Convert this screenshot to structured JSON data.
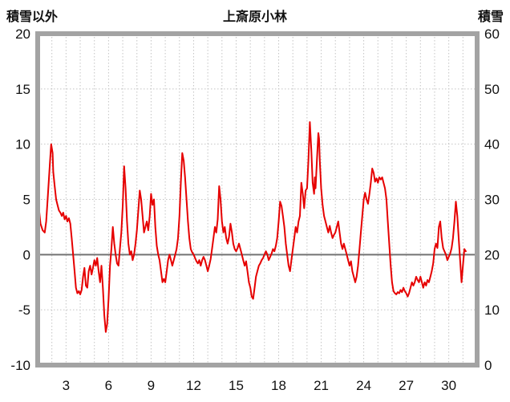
{
  "header": {
    "left_axis_title": "積雪以外",
    "title": "上斎原小林",
    "right_axis_title": "積雪"
  },
  "chart_data": {
    "type": "line",
    "title": "上斎原小林",
    "left_axis": {
      "title": "積雪以外",
      "min": -10,
      "max": 20,
      "ticks": [
        20,
        15,
        10,
        5,
        0,
        -5,
        -10
      ]
    },
    "right_axis": {
      "title": "積雪",
      "min": 0,
      "max": 60,
      "ticks": [
        60,
        50,
        40,
        30,
        20,
        10,
        0
      ]
    },
    "x_axis": {
      "min": 1,
      "max": 32,
      "tick_labels": [
        3,
        6,
        9,
        12,
        15,
        18,
        21,
        24,
        27,
        30
      ]
    },
    "grid": {
      "vertical_every_day": true,
      "horizontal_at": [
        15,
        10,
        5,
        -5
      ],
      "zero_line": 0
    },
    "colors": {
      "line": "#e60000",
      "grid": "#c4c4c4",
      "zero_line": "#737373",
      "frame": "#a3a3a3",
      "text": "#111111",
      "background": "#ffffff"
    },
    "series": [
      {
        "name": "積雪以外",
        "axis": "left",
        "color": "#e60000",
        "points": [
          [
            1.0,
            3.2
          ],
          [
            1.1,
            4.0
          ],
          [
            1.2,
            2.8
          ],
          [
            1.35,
            2.2
          ],
          [
            1.5,
            2.0
          ],
          [
            1.6,
            3.0
          ],
          [
            1.7,
            5.0
          ],
          [
            1.85,
            8.0
          ],
          [
            1.95,
            10.0
          ],
          [
            2.05,
            9.2
          ],
          [
            2.1,
            7.5
          ],
          [
            2.2,
            6.2
          ],
          [
            2.3,
            5.0
          ],
          [
            2.4,
            4.5
          ],
          [
            2.5,
            4.0
          ],
          [
            2.6,
            3.8
          ],
          [
            2.7,
            3.5
          ],
          [
            2.8,
            3.8
          ],
          [
            2.9,
            3.2
          ],
          [
            3.0,
            3.5
          ],
          [
            3.1,
            3.0
          ],
          [
            3.2,
            3.3
          ],
          [
            3.3,
            2.8
          ],
          [
            3.4,
            1.5
          ],
          [
            3.5,
            0.0
          ],
          [
            3.6,
            -1.5
          ],
          [
            3.7,
            -3.0
          ],
          [
            3.8,
            -3.5
          ],
          [
            3.9,
            -3.3
          ],
          [
            4.0,
            -3.6
          ],
          [
            4.1,
            -3.2
          ],
          [
            4.2,
            -2.0
          ],
          [
            4.3,
            -1.2
          ],
          [
            4.4,
            -2.8
          ],
          [
            4.5,
            -3.0
          ],
          [
            4.6,
            -1.5
          ],
          [
            4.7,
            -1.0
          ],
          [
            4.8,
            -1.8
          ],
          [
            4.9,
            -1.2
          ],
          [
            5.0,
            -0.5
          ],
          [
            5.1,
            -1.0
          ],
          [
            5.2,
            -0.3
          ],
          [
            5.3,
            -1.5
          ],
          [
            5.4,
            -2.5
          ],
          [
            5.5,
            -1.0
          ],
          [
            5.6,
            -3.0
          ],
          [
            5.7,
            -5.5
          ],
          [
            5.8,
            -7.0
          ],
          [
            5.9,
            -6.3
          ],
          [
            6.0,
            -4.0
          ],
          [
            6.1,
            -1.0
          ],
          [
            6.2,
            0.5
          ],
          [
            6.3,
            2.5
          ],
          [
            6.4,
            1.0
          ],
          [
            6.5,
            0.0
          ],
          [
            6.6,
            -0.8
          ],
          [
            6.7,
            -1.0
          ],
          [
            6.8,
            0.5
          ],
          [
            6.9,
            2.0
          ],
          [
            7.0,
            4.5
          ],
          [
            7.1,
            8.0
          ],
          [
            7.2,
            6.0
          ],
          [
            7.3,
            3.0
          ],
          [
            7.4,
            1.0
          ],
          [
            7.5,
            0.0
          ],
          [
            7.6,
            0.3
          ],
          [
            7.7,
            -0.5
          ],
          [
            7.8,
            0.0
          ],
          [
            7.9,
            1.0
          ],
          [
            8.0,
            2.2
          ],
          [
            8.1,
            4.0
          ],
          [
            8.2,
            5.8
          ],
          [
            8.3,
            5.0
          ],
          [
            8.4,
            3.5
          ],
          [
            8.5,
            2.0
          ],
          [
            8.6,
            2.5
          ],
          [
            8.7,
            3.0
          ],
          [
            8.8,
            2.2
          ],
          [
            8.9,
            3.5
          ],
          [
            9.0,
            5.5
          ],
          [
            9.1,
            4.5
          ],
          [
            9.2,
            5.0
          ],
          [
            9.3,
            2.5
          ],
          [
            9.4,
            0.8
          ],
          [
            9.5,
            0.0
          ],
          [
            9.6,
            -0.5
          ],
          [
            9.7,
            -1.5
          ],
          [
            9.8,
            -2.5
          ],
          [
            9.9,
            -2.2
          ],
          [
            10.0,
            -2.5
          ],
          [
            10.1,
            -1.5
          ],
          [
            10.2,
            -0.5
          ],
          [
            10.3,
            0.0
          ],
          [
            10.4,
            -0.5
          ],
          [
            10.5,
            -1.0
          ],
          [
            10.6,
            -0.5
          ],
          [
            10.7,
            0.0
          ],
          [
            10.8,
            0.5
          ],
          [
            10.9,
            1.5
          ],
          [
            11.0,
            3.5
          ],
          [
            11.1,
            6.5
          ],
          [
            11.2,
            9.2
          ],
          [
            11.3,
            8.5
          ],
          [
            11.4,
            7.0
          ],
          [
            11.5,
            5.0
          ],
          [
            11.6,
            3.0
          ],
          [
            11.7,
            1.5
          ],
          [
            11.8,
            0.5
          ],
          [
            11.9,
            0.2
          ],
          [
            12.0,
            0.0
          ],
          [
            12.1,
            -0.3
          ],
          [
            12.2,
            -0.6
          ],
          [
            12.3,
            -0.8
          ],
          [
            12.4,
            -0.5
          ],
          [
            12.5,
            -1.0
          ],
          [
            12.6,
            -0.5
          ],
          [
            12.7,
            -0.2
          ],
          [
            12.8,
            -0.5
          ],
          [
            12.9,
            -1.0
          ],
          [
            13.0,
            -1.5
          ],
          [
            13.1,
            -1.0
          ],
          [
            13.2,
            -0.4
          ],
          [
            13.3,
            0.5
          ],
          [
            13.4,
            1.5
          ],
          [
            13.5,
            2.5
          ],
          [
            13.6,
            2.0
          ],
          [
            13.7,
            3.2
          ],
          [
            13.8,
            6.2
          ],
          [
            13.9,
            5.0
          ],
          [
            14.0,
            3.0
          ],
          [
            14.1,
            2.0
          ],
          [
            14.2,
            2.5
          ],
          [
            14.3,
            1.5
          ],
          [
            14.4,
            1.0
          ],
          [
            14.5,
            1.6
          ],
          [
            14.6,
            2.8
          ],
          [
            14.7,
            2.0
          ],
          [
            14.8,
            1.0
          ],
          [
            14.9,
            0.5
          ],
          [
            15.0,
            0.3
          ],
          [
            15.1,
            0.6
          ],
          [
            15.2,
            1.0
          ],
          [
            15.3,
            0.5
          ],
          [
            15.4,
            0.0
          ],
          [
            15.5,
            -0.5
          ],
          [
            15.6,
            -1.0
          ],
          [
            15.7,
            -0.6
          ],
          [
            15.8,
            -1.5
          ],
          [
            15.9,
            -2.5
          ],
          [
            16.0,
            -3.0
          ],
          [
            16.1,
            -3.8
          ],
          [
            16.2,
            -4.0
          ],
          [
            16.3,
            -3.0
          ],
          [
            16.4,
            -2.0
          ],
          [
            16.5,
            -1.5
          ],
          [
            16.6,
            -1.0
          ],
          [
            16.7,
            -0.8
          ],
          [
            16.8,
            -0.5
          ],
          [
            16.9,
            -0.3
          ],
          [
            17.0,
            0.0
          ],
          [
            17.1,
            0.3
          ],
          [
            17.2,
            0.0
          ],
          [
            17.3,
            -0.5
          ],
          [
            17.4,
            -0.2
          ],
          [
            17.5,
            0.1
          ],
          [
            17.6,
            0.5
          ],
          [
            17.7,
            0.3
          ],
          [
            17.8,
            0.8
          ],
          [
            17.9,
            1.5
          ],
          [
            18.0,
            3.0
          ],
          [
            18.1,
            4.8
          ],
          [
            18.2,
            4.4
          ],
          [
            18.3,
            3.5
          ],
          [
            18.4,
            2.5
          ],
          [
            18.5,
            1.0
          ],
          [
            18.6,
            0.0
          ],
          [
            18.7,
            -1.0
          ],
          [
            18.8,
            -1.5
          ],
          [
            18.9,
            -0.5
          ],
          [
            19.0,
            0.5
          ],
          [
            19.1,
            1.5
          ],
          [
            19.2,
            2.5
          ],
          [
            19.3,
            2.0
          ],
          [
            19.4,
            3.0
          ],
          [
            19.5,
            3.5
          ],
          [
            19.6,
            6.5
          ],
          [
            19.7,
            5.5
          ],
          [
            19.8,
            4.2
          ],
          [
            19.9,
            5.8
          ],
          [
            20.0,
            6.0
          ],
          [
            20.1,
            8.5
          ],
          [
            20.2,
            12.0
          ],
          [
            20.3,
            9.5
          ],
          [
            20.4,
            6.5
          ],
          [
            20.5,
            5.5
          ],
          [
            20.55,
            7.0
          ],
          [
            20.6,
            6.0
          ],
          [
            20.7,
            8.5
          ],
          [
            20.8,
            11.0
          ],
          [
            20.85,
            10.5
          ],
          [
            20.9,
            8.5
          ],
          [
            21.0,
            6.0
          ],
          [
            21.1,
            4.5
          ],
          [
            21.2,
            3.5
          ],
          [
            21.3,
            3.0
          ],
          [
            21.4,
            2.5
          ],
          [
            21.5,
            2.0
          ],
          [
            21.6,
            2.6
          ],
          [
            21.7,
            2.0
          ],
          [
            21.8,
            1.5
          ],
          [
            21.9,
            1.8
          ],
          [
            22.0,
            2.0
          ],
          [
            22.1,
            2.5
          ],
          [
            22.2,
            3.0
          ],
          [
            22.3,
            2.0
          ],
          [
            22.4,
            1.0
          ],
          [
            22.5,
            0.5
          ],
          [
            22.6,
            1.0
          ],
          [
            22.7,
            0.5
          ],
          [
            22.8,
            0.0
          ],
          [
            22.9,
            -0.5
          ],
          [
            23.0,
            -1.0
          ],
          [
            23.1,
            -0.6
          ],
          [
            23.2,
            -1.5
          ],
          [
            23.3,
            -2.0
          ],
          [
            23.4,
            -2.5
          ],
          [
            23.5,
            -2.0
          ],
          [
            23.6,
            -1.0
          ],
          [
            23.7,
            0.5
          ],
          [
            23.8,
            2.0
          ],
          [
            23.9,
            3.5
          ],
          [
            24.0,
            5.0
          ],
          [
            24.1,
            5.6
          ],
          [
            24.2,
            5.0
          ],
          [
            24.3,
            4.6
          ],
          [
            24.4,
            5.5
          ],
          [
            24.5,
            6.5
          ],
          [
            24.6,
            7.8
          ],
          [
            24.7,
            7.4
          ],
          [
            24.8,
            6.6
          ],
          [
            24.9,
            6.9
          ],
          [
            25.0,
            6.5
          ],
          [
            25.1,
            7.0
          ],
          [
            25.2,
            6.8
          ],
          [
            25.3,
            7.0
          ],
          [
            25.4,
            6.5
          ],
          [
            25.5,
            6.0
          ],
          [
            25.6,
            5.0
          ],
          [
            25.7,
            3.0
          ],
          [
            25.8,
            1.0
          ],
          [
            25.9,
            -1.0
          ],
          [
            26.0,
            -2.5
          ],
          [
            26.1,
            -3.3
          ],
          [
            26.2,
            -3.5
          ],
          [
            26.3,
            -3.6
          ],
          [
            26.4,
            -3.4
          ],
          [
            26.5,
            -3.5
          ],
          [
            26.6,
            -3.2
          ],
          [
            26.7,
            -3.4
          ],
          [
            26.8,
            -3.0
          ],
          [
            26.9,
            -3.3
          ],
          [
            27.0,
            -3.5
          ],
          [
            27.1,
            -3.8
          ],
          [
            27.2,
            -3.5
          ],
          [
            27.3,
            -3.0
          ],
          [
            27.4,
            -2.5
          ],
          [
            27.5,
            -2.8
          ],
          [
            27.6,
            -2.5
          ],
          [
            27.7,
            -2.0
          ],
          [
            27.8,
            -2.3
          ],
          [
            27.9,
            -2.5
          ],
          [
            28.0,
            -2.0
          ],
          [
            28.1,
            -2.5
          ],
          [
            28.2,
            -3.0
          ],
          [
            28.3,
            -2.5
          ],
          [
            28.4,
            -2.8
          ],
          [
            28.5,
            -2.3
          ],
          [
            28.6,
            -2.5
          ],
          [
            28.7,
            -2.0
          ],
          [
            28.8,
            -1.5
          ],
          [
            28.9,
            -0.8
          ],
          [
            29.0,
            0.5
          ],
          [
            29.1,
            1.0
          ],
          [
            29.2,
            0.6
          ],
          [
            29.3,
            2.5
          ],
          [
            29.4,
            3.0
          ],
          [
            29.5,
            1.5
          ],
          [
            29.6,
            0.6
          ],
          [
            29.7,
            0.3
          ],
          [
            29.8,
            0.0
          ],
          [
            29.9,
            -0.5
          ],
          [
            30.0,
            -0.2
          ],
          [
            30.1,
            0.1
          ],
          [
            30.2,
            0.6
          ],
          [
            30.3,
            1.5
          ],
          [
            30.4,
            3.0
          ],
          [
            30.5,
            4.8
          ],
          [
            30.6,
            3.5
          ],
          [
            30.7,
            1.5
          ],
          [
            30.8,
            -0.5
          ],
          [
            30.9,
            -2.5
          ],
          [
            31.0,
            -1.0
          ],
          [
            31.1,
            0.5
          ],
          [
            31.2,
            0.3
          ]
        ]
      }
    ]
  }
}
